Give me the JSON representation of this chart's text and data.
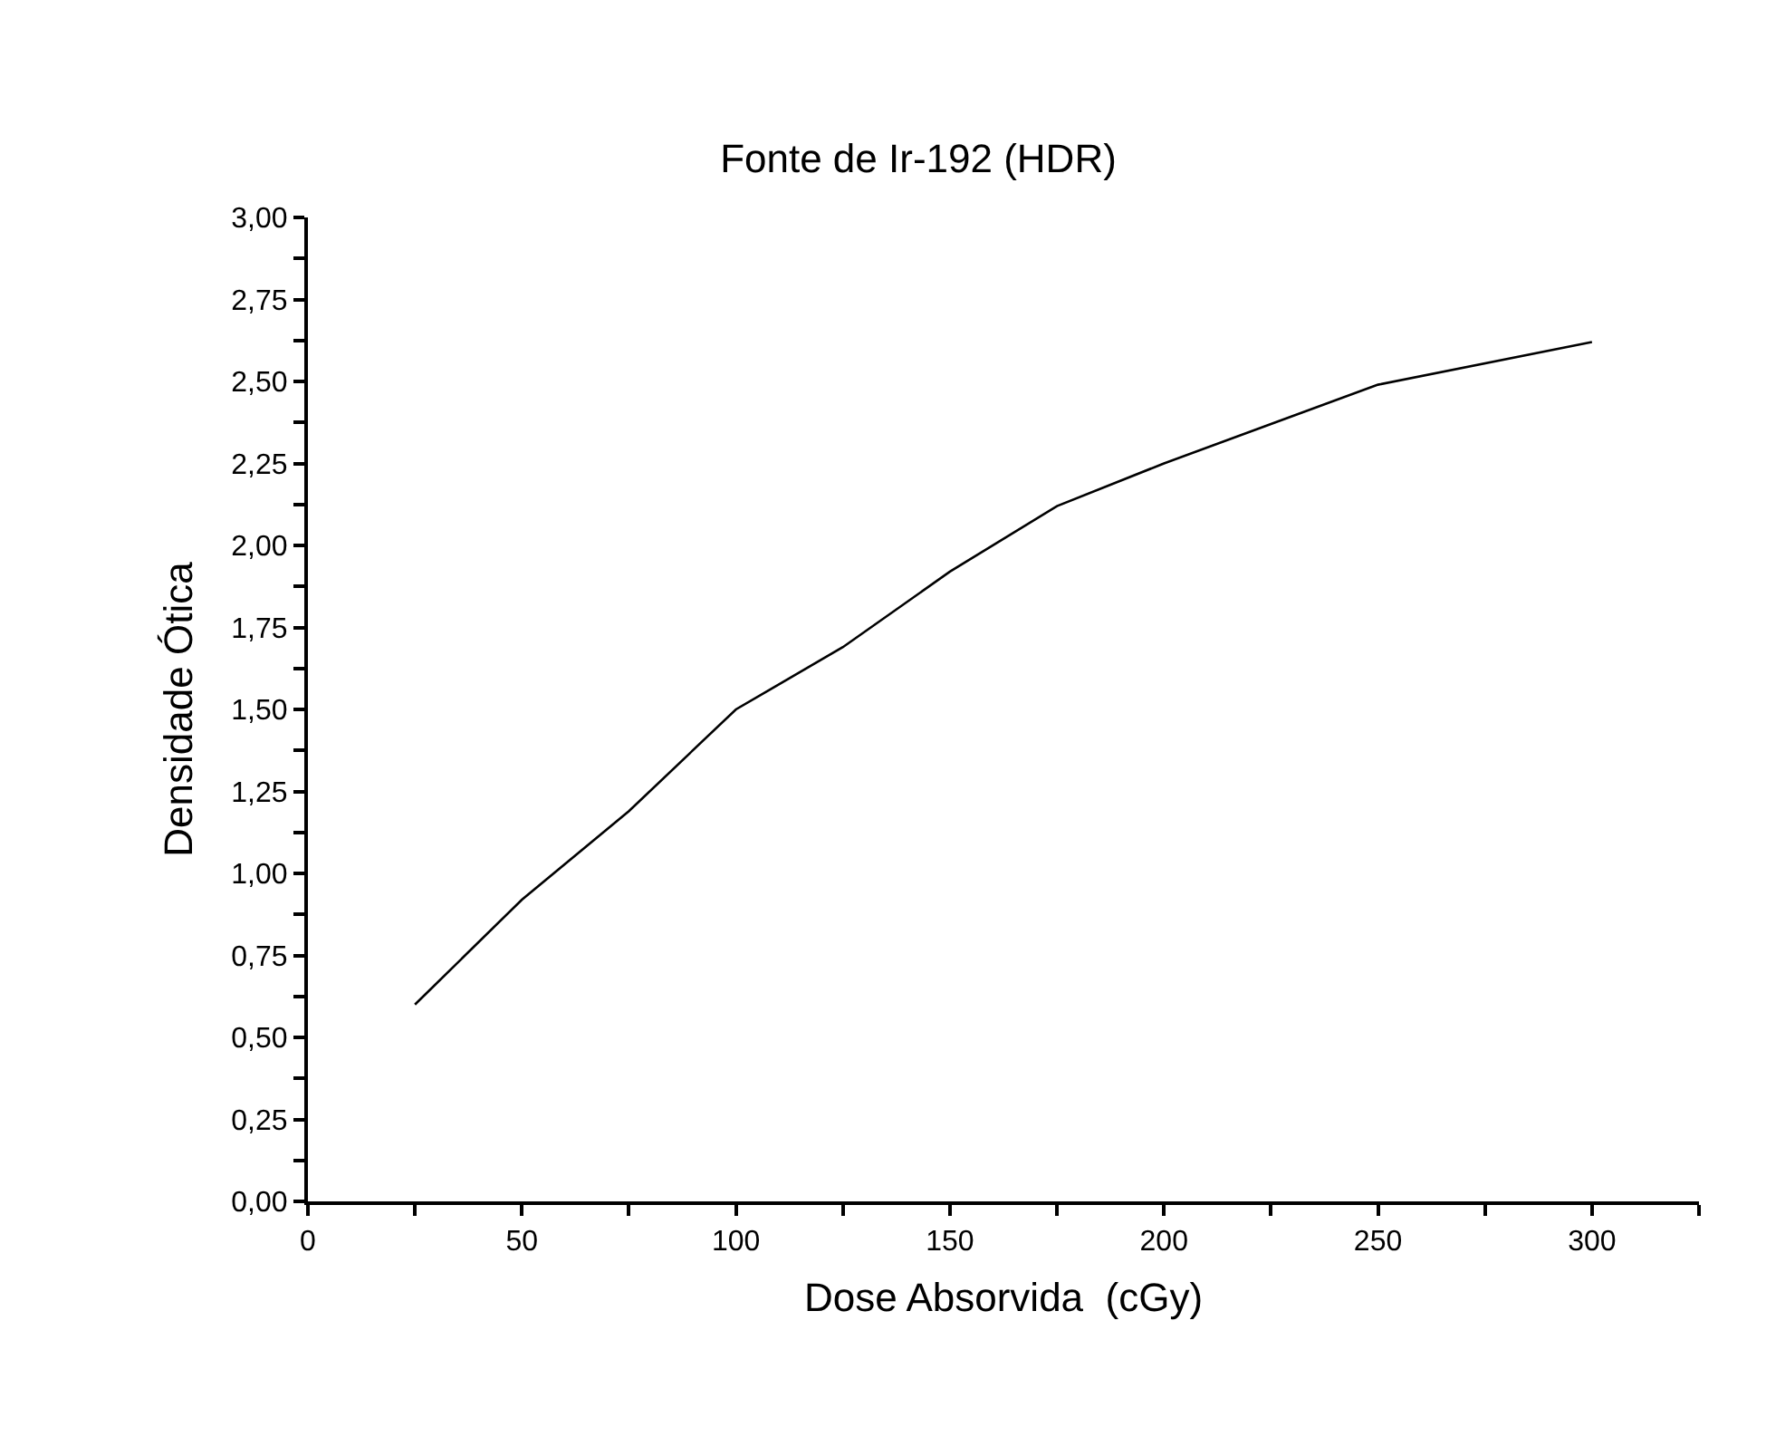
{
  "chart_data": {
    "type": "line",
    "title": "Fonte de Ir-192 (HDR)",
    "xlabel": "Dose Absorvida  (cGy)",
    "ylabel": "Densidade Ótica",
    "x": [
      25,
      50,
      75,
      100,
      125,
      150,
      175,
      200,
      225,
      250,
      300
    ],
    "series": [
      {
        "color": "#000000",
        "values": [
          0.6,
          0.92,
          1.19,
          1.5,
          1.69,
          1.92,
          2.12,
          2.25,
          2.37,
          2.49,
          2.62
        ]
      }
    ],
    "xlim": [
      0,
      325
    ],
    "xticks": [
      0,
      {
        "value": 25,
        "label": null
      },
      50,
      {
        "value": 75,
        "label": null
      },
      100,
      {
        "value": 125,
        "label": null
      },
      150,
      {
        "value": 175,
        "label": null
      },
      200,
      {
        "value": 225,
        "label": null
      },
      250,
      {
        "value": 275,
        "label": null
      },
      300,
      {
        "value": 325,
        "label": null
      }
    ],
    "ylim": [
      0,
      3
    ],
    "yticks": [
      {
        "value": 0,
        "label": "0,00"
      },
      {
        "value": 0.125,
        "label": null
      },
      {
        "value": 0.25,
        "label": "0,25"
      },
      {
        "value": 0.375,
        "label": null
      },
      {
        "value": 0.5,
        "label": "0,50"
      },
      {
        "value": 0.625,
        "label": null
      },
      {
        "value": 0.75,
        "label": "0,75"
      },
      {
        "value": 0.875,
        "label": null
      },
      {
        "value": 1,
        "label": "1,00"
      },
      {
        "value": 1.125,
        "label": null
      },
      {
        "value": 1.25,
        "label": "1,25"
      },
      {
        "value": 1.375,
        "label": null
      },
      {
        "value": 1.5,
        "label": "1,50"
      },
      {
        "value": 1.625,
        "label": null
      },
      {
        "value": 1.75,
        "label": "1,75"
      },
      {
        "value": 1.875,
        "label": null
      },
      {
        "value": 2,
        "label": "2,00"
      },
      {
        "value": 2.125,
        "label": null
      },
      {
        "value": 2.25,
        "label": "2,25"
      },
      {
        "value": 2.375,
        "label": null
      },
      {
        "value": 2.5,
        "label": "2,50"
      },
      {
        "value": 2.625,
        "label": null
      },
      {
        "value": 2.75,
        "label": "2,75"
      },
      {
        "value": 2.875,
        "label": null
      },
      {
        "value": 3,
        "label": "3,00"
      }
    ],
    "marker": "none",
    "line_style": "solid"
  }
}
